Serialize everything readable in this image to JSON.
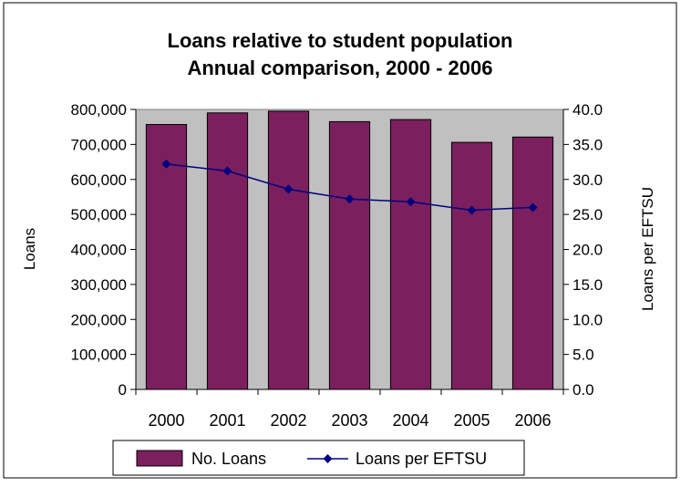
{
  "chart_data": {
    "type": "bar",
    "title": "Loans relative to student population",
    "subtitle": "Annual comparison, 2000 - 2006",
    "categories": [
      "2000",
      "2001",
      "2002",
      "2003",
      "2004",
      "2005",
      "2006"
    ],
    "series": [
      {
        "name": "No. Loans",
        "type": "bar",
        "axis": "left",
        "color": "#7B1F5E",
        "values": [
          757000,
          790000,
          795000,
          765000,
          771000,
          706000,
          721000
        ]
      },
      {
        "name": "Loans per EFTSU",
        "type": "line",
        "axis": "right",
        "color": "#00007F",
        "marker": "diamond",
        "values": [
          32.2,
          31.2,
          28.6,
          27.2,
          26.8,
          25.6,
          26.0
        ]
      }
    ],
    "ylabel": "Loans",
    "ylabel_right": "Loans per EFTSU",
    "ylim": [
      0,
      800000
    ],
    "ylim_right": [
      0,
      40
    ],
    "yticks": [
      "0",
      "100,000",
      "200,000",
      "300,000",
      "400,000",
      "500,000",
      "600,000",
      "700,000",
      "800,000"
    ],
    "yticks_right": [
      "0.0",
      "5.0",
      "10.0",
      "15.0",
      "20.0",
      "25.0",
      "30.0",
      "35.0",
      "40.0"
    ],
    "plot_background": "#C0C0C0",
    "grid": false,
    "legend_position": "bottom"
  }
}
